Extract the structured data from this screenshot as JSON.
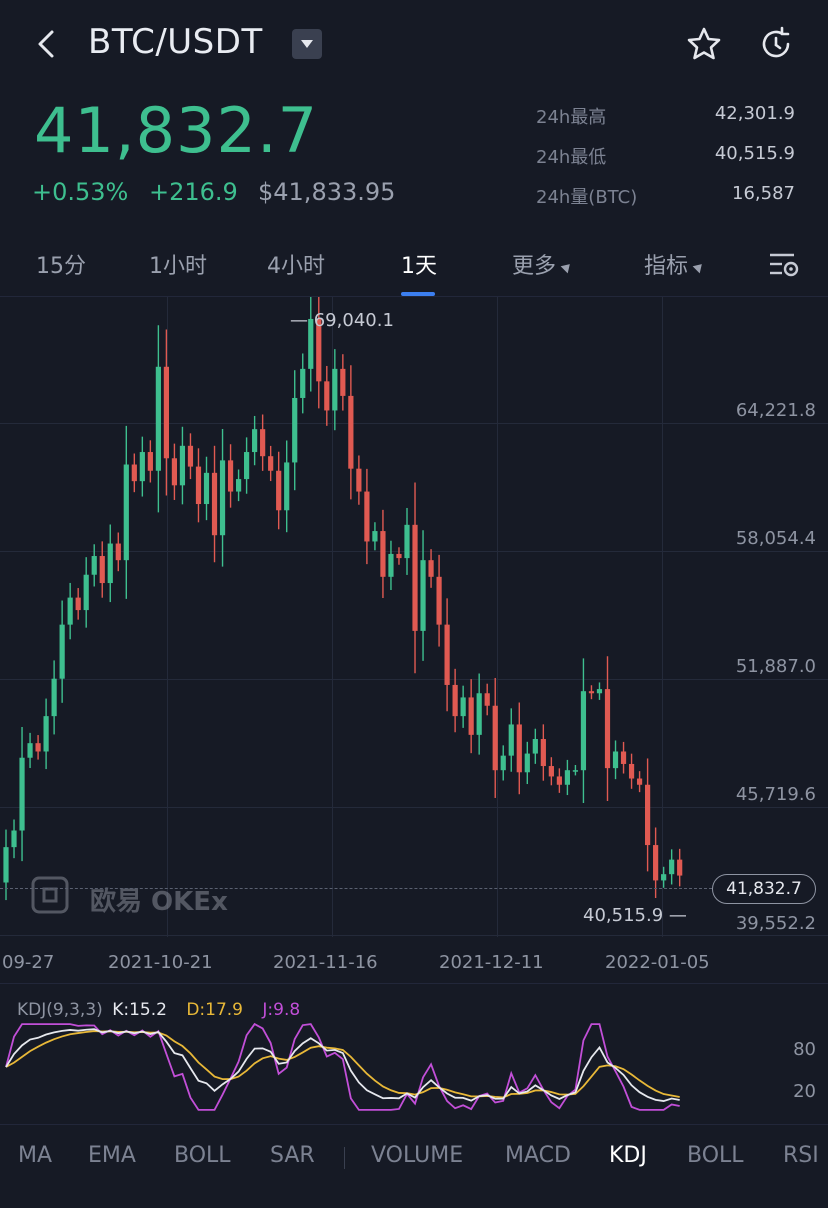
{
  "header": {
    "pair": "BTC/USDT",
    "icons": [
      "back-icon",
      "dropdown-icon",
      "star-icon",
      "refresh-icon"
    ]
  },
  "summary": {
    "last_price": "41,832.7",
    "pct_change": "+0.53%",
    "abs_change": "+216.9",
    "usd_price": "$41,833.95",
    "stats": [
      {
        "label": "24h最高",
        "value": "42,301.9"
      },
      {
        "label": "24h最低",
        "value": "40,515.9"
      },
      {
        "label": "24h量(BTC)",
        "value": "16,587"
      }
    ],
    "up_color": "#3ebf8f",
    "down_color": "#e05a52"
  },
  "intervals": {
    "tabs": [
      "15分",
      "1小时",
      "4小时",
      "1天",
      "更多",
      "指标"
    ],
    "active": "1天"
  },
  "chart_data": {
    "type": "candlestick",
    "y_ticks": [
      "64,221.8",
      "58,054.4",
      "51,887.0",
      "45,719.6",
      "39,552.2"
    ],
    "x_ticks": [
      "09-27",
      "2021-10-21",
      "2021-11-16",
      "2021-12-11",
      "2022-01-05"
    ],
    "high_marker": "69,040.1",
    "low_marker": "40,515.9",
    "last_price_badge": "41,832.7",
    "ylim": [
      39552.2,
      69040.1
    ],
    "close_series": [
      43200,
      44000,
      47500,
      48200,
      47800,
      49500,
      51300,
      53900,
      55200,
      54600,
      56300,
      57200,
      55900,
      57800,
      57000,
      61600,
      60800,
      62200,
      61300,
      66300,
      61900,
      60600,
      62500,
      61500,
      59700,
      61200,
      58200,
      61800,
      60300,
      60900,
      62200,
      63300,
      62000,
      61300,
      59400,
      61700,
      64800,
      66200,
      68600,
      65600,
      64200,
      66200,
      64900,
      61400,
      60300,
      57900,
      58400,
      56200,
      57300,
      57100,
      58700,
      53600,
      57000,
      56200,
      53900,
      51000,
      49500,
      50400,
      48600,
      50600,
      50000,
      46900,
      47600,
      49100,
      46800,
      47700,
      48400,
      47100,
      46600,
      46200,
      46900,
      46900,
      50700,
      50600,
      50800,
      47000,
      47800,
      47200,
      46500,
      46200,
      43300,
      41600,
      41900,
      42600,
      41832.7
    ]
  },
  "watermark": {
    "text": "欧易 OKEx"
  },
  "kdj": {
    "label": "KDJ(9,3,3)",
    "k": "K:15.2",
    "d": "D:17.9",
    "j": "J:9.8",
    "k_color": "#e6e8ee",
    "d_color": "#e8b838",
    "j_color": "#c24fd8",
    "y_ticks": [
      "80",
      "20"
    ]
  },
  "bottom_tabs": {
    "items": [
      "MA",
      "EMA",
      "BOLL",
      "SAR",
      "VOLUME",
      "MACD",
      "KDJ",
      "BOLL",
      "RSI"
    ],
    "active": "KDJ"
  }
}
